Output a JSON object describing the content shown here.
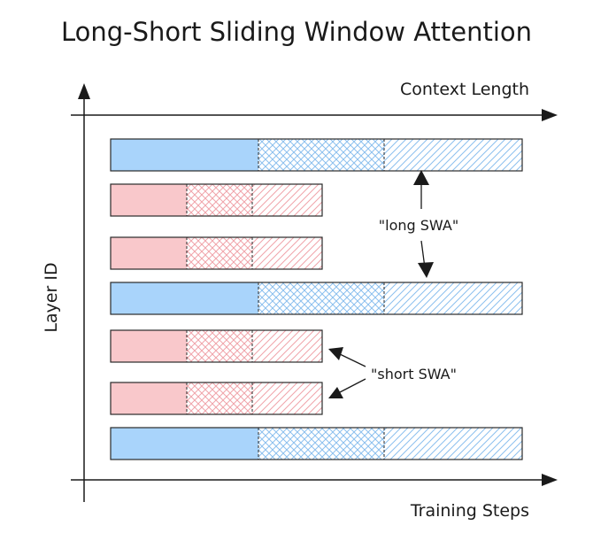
{
  "title": "Long-Short Sliding Window Attention",
  "x_axis_top_label": "Context Length",
  "x_axis_bottom_label": "Training Steps",
  "y_axis_label": "Layer ID",
  "annotations": {
    "long": "\"long SWA\"",
    "short": "\"short SWA\""
  },
  "colors": {
    "long": "#a9d4fb",
    "long_hatch": "#8cc0ee",
    "short": "#f9c8cb",
    "short_hatch": "#f0a4aa",
    "outline": "#2a2a2a",
    "axis": "#1a1a1a"
  },
  "layers": [
    {
      "type": "long"
    },
    {
      "type": "short"
    },
    {
      "type": "short"
    },
    {
      "type": "long"
    },
    {
      "type": "short"
    },
    {
      "type": "short"
    },
    {
      "type": "long"
    }
  ]
}
